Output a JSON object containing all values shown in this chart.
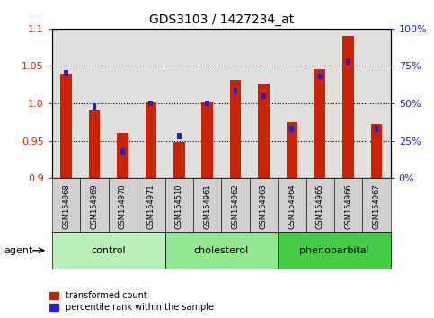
{
  "title": "GDS3103 / 1427234_at",
  "samples": [
    "GSM154968",
    "GSM154969",
    "GSM154970",
    "GSM154971",
    "GSM154510",
    "GSM154961",
    "GSM154962",
    "GSM154963",
    "GSM154964",
    "GSM154965",
    "GSM154966",
    "GSM154967"
  ],
  "red_values": [
    1.04,
    0.99,
    0.96,
    1.001,
    0.948,
    1.001,
    1.031,
    1.027,
    0.975,
    1.046,
    1.09,
    0.973
  ],
  "blue_values": [
    0.7,
    0.48,
    0.18,
    0.5,
    0.28,
    0.5,
    0.58,
    0.55,
    0.33,
    0.68,
    0.78,
    0.33
  ],
  "ylim_left": [
    0.9,
    1.1
  ],
  "ylim_right": [
    0,
    100
  ],
  "yticks_left": [
    0.9,
    0.95,
    1.0,
    1.05,
    1.1
  ],
  "yticks_right": [
    0,
    25,
    50,
    75,
    100
  ],
  "ytick_labels_right": [
    "0%",
    "25%",
    "50%",
    "75%",
    "100%"
  ],
  "groups": [
    {
      "label": "control",
      "indices": [
        0,
        1,
        2,
        3
      ],
      "color": "#b8f0b8"
    },
    {
      "label": "cholesterol",
      "indices": [
        4,
        5,
        6,
        7
      ],
      "color": "#90e890"
    },
    {
      "label": "phenobarbital",
      "indices": [
        8,
        9,
        10,
        11
      ],
      "color": "#44cc44"
    }
  ],
  "agent_label": "agent",
  "red_color": "#cc2200",
  "blue_color": "#2222cc",
  "bar_width": 0.4,
  "blue_bar_width": 0.15,
  "background_color": "#ffffff",
  "plot_bg_color": "#e0e0e0",
  "ylabel_left_color": "#cc2200",
  "ylabel_right_color": "#2222cc",
  "legend_red_label": "transformed count",
  "legend_blue_label": "percentile rank within the sample",
  "base_value": 0.9
}
